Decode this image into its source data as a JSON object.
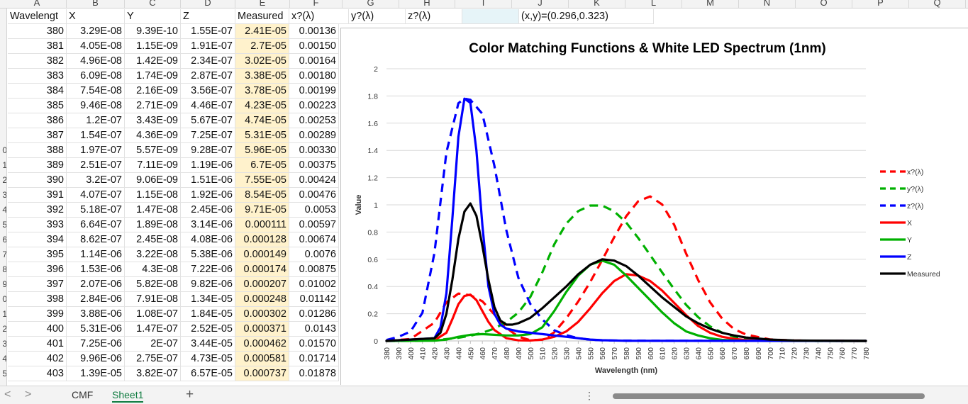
{
  "columns": [
    "A",
    "B",
    "C",
    "D",
    "E",
    "F",
    "G",
    "H",
    "I",
    "J",
    "K",
    "L",
    "M",
    "N",
    "O",
    "P",
    "Q"
  ],
  "row_numbers": [
    "",
    "",
    "",
    "",
    "",
    "",
    "",
    "",
    "",
    "0",
    "1",
    "2",
    "3",
    "4",
    "5",
    "6",
    "7",
    "8",
    "9",
    "0",
    "1",
    "2",
    "3",
    "4",
    "5"
  ],
  "header_row": [
    "Wavelengt",
    "X",
    "Y",
    "Z",
    "Measured",
    "x?(λ)",
    "y?(λ)",
    "z?(λ)",
    "",
    "(x,y)=(0.296,0.323)"
  ],
  "rows": [
    [
      "380",
      "3.29E-08",
      "9.39E-10",
      "1.55E-07",
      "2.41E-05",
      "0.00136"
    ],
    [
      "381",
      "4.05E-08",
      "1.15E-09",
      "1.91E-07",
      "2.7E-05",
      "0.00150"
    ],
    [
      "382",
      "4.96E-08",
      "1.42E-09",
      "2.34E-07",
      "3.02E-05",
      "0.00164"
    ],
    [
      "383",
      "6.09E-08",
      "1.74E-09",
      "2.87E-07",
      "3.38E-05",
      "0.00180"
    ],
    [
      "384",
      "7.54E-08",
      "2.16E-09",
      "3.56E-07",
      "3.78E-05",
      "0.00199"
    ],
    [
      "385",
      "9.46E-08",
      "2.71E-09",
      "4.46E-07",
      "4.23E-05",
      "0.00223"
    ],
    [
      "386",
      "1.2E-07",
      "3.43E-09",
      "5.67E-07",
      "4.74E-05",
      "0.00253"
    ],
    [
      "387",
      "1.54E-07",
      "4.36E-09",
      "7.25E-07",
      "5.31E-05",
      "0.00289"
    ],
    [
      "388",
      "1.97E-07",
      "5.57E-09",
      "9.28E-07",
      "5.96E-05",
      "0.00330"
    ],
    [
      "389",
      "2.51E-07",
      "7.11E-09",
      "1.19E-06",
      "6.7E-05",
      "0.00375"
    ],
    [
      "390",
      "3.2E-07",
      "9.06E-09",
      "1.51E-06",
      "7.55E-05",
      "0.00424"
    ],
    [
      "391",
      "4.07E-07",
      "1.15E-08",
      "1.92E-06",
      "8.54E-05",
      "0.00476"
    ],
    [
      "392",
      "5.18E-07",
      "1.47E-08",
      "2.45E-06",
      "9.71E-05",
      "0.0053"
    ],
    [
      "393",
      "6.64E-07",
      "1.89E-08",
      "3.14E-06",
      "0.000111",
      "0.00597"
    ],
    [
      "394",
      "8.62E-07",
      "2.45E-08",
      "4.08E-06",
      "0.000128",
      "0.00674"
    ],
    [
      "395",
      "1.14E-06",
      "3.22E-08",
      "5.38E-06",
      "0.000149",
      "0.0076"
    ],
    [
      "396",
      "1.53E-06",
      "4.3E-08",
      "7.22E-06",
      "0.000174",
      "0.00875"
    ],
    [
      "397",
      "2.07E-06",
      "5.82E-08",
      "9.82E-06",
      "0.000207",
      "0.01002"
    ],
    [
      "398",
      "2.84E-06",
      "7.91E-08",
      "1.34E-05",
      "0.000248",
      "0.01142"
    ],
    [
      "399",
      "3.88E-06",
      "1.08E-07",
      "1.84E-05",
      "0.000302",
      "0.01286"
    ],
    [
      "400",
      "5.31E-06",
      "1.47E-07",
      "2.52E-05",
      "0.000371",
      "0.0143"
    ],
    [
      "401",
      "7.25E-06",
      "2E-07",
      "3.44E-05",
      "0.000462",
      "0.01570"
    ],
    [
      "402",
      "9.96E-06",
      "2.75E-07",
      "4.73E-05",
      "0.000581",
      "0.01714"
    ],
    [
      "403",
      "1.39E-05",
      "3.82E-07",
      "6.57E-05",
      "0.000737",
      "0.01878"
    ]
  ],
  "tabs": [
    "CMF",
    "Sheet1"
  ],
  "add_tab": "+",
  "nav": {
    "prev": "<",
    "next": ">",
    "more": "⋮"
  },
  "colors": {
    "x": "#ff0000",
    "y": "#00b000",
    "z": "#0000ff",
    "measured": "#000000",
    "highlight": "#fff2cc",
    "tab_active": "#107c41"
  },
  "chart_data": {
    "type": "line",
    "title": "Color Matching Functions & White LED Spectrum (1nm)",
    "xlabel": "Wavelength (nm)",
    "ylabel": "Value",
    "xlim": [
      380,
      780
    ],
    "ylim": [
      0,
      2
    ],
    "yticks": [
      0,
      0.2,
      0.4,
      0.6,
      0.8,
      1,
      1.2,
      1.4,
      1.6,
      1.8,
      2
    ],
    "xtick_step": 10,
    "grid": true,
    "legend_placement": "right",
    "series": [
      {
        "name": "x?(λ)",
        "color": "#ff0000",
        "style": "dashed",
        "x": [
          380,
          400,
          420,
          430,
          440,
          450,
          460,
          470,
          480,
          490,
          500,
          510,
          520,
          530,
          540,
          550,
          560,
          570,
          580,
          590,
          600,
          610,
          620,
          630,
          640,
          650,
          660,
          670,
          680,
          700,
          720,
          740,
          780
        ],
        "y": [
          0.001,
          0.014,
          0.134,
          0.284,
          0.348,
          0.336,
          0.291,
          0.195,
          0.096,
          0.032,
          0.005,
          0.009,
          0.063,
          0.166,
          0.29,
          0.433,
          0.595,
          0.762,
          0.916,
          1.026,
          1.062,
          1.003,
          0.854,
          0.642,
          0.448,
          0.284,
          0.165,
          0.087,
          0.047,
          0.011,
          0.003,
          0.001,
          0
        ]
      },
      {
        "name": "y?(λ)",
        "color": "#00b000",
        "style": "dashed",
        "x": [
          380,
          400,
          420,
          440,
          450,
          460,
          470,
          480,
          490,
          500,
          510,
          520,
          530,
          540,
          550,
          560,
          570,
          580,
          590,
          600,
          610,
          620,
          630,
          640,
          650,
          660,
          670,
          680,
          700,
          720,
          740,
          780
        ],
        "y": [
          0,
          0,
          0.004,
          0.023,
          0.038,
          0.06,
          0.091,
          0.139,
          0.208,
          0.323,
          0.503,
          0.71,
          0.862,
          0.954,
          0.995,
          0.995,
          0.952,
          0.87,
          0.757,
          0.631,
          0.503,
          0.381,
          0.265,
          0.175,
          0.107,
          0.061,
          0.032,
          0.017,
          0.004,
          0.001,
          0,
          0
        ]
      },
      {
        "name": "z?(λ)",
        "color": "#0000ff",
        "style": "dashed",
        "x": [
          380,
          390,
          400,
          410,
          420,
          430,
          440,
          445,
          450,
          455,
          460,
          470,
          480,
          490,
          500,
          510,
          520,
          530,
          540,
          550,
          560,
          580,
          600,
          780
        ],
        "y": [
          0.007,
          0.03,
          0.068,
          0.207,
          0.646,
          1.386,
          1.747,
          1.78,
          1.772,
          1.72,
          1.669,
          1.288,
          0.813,
          0.465,
          0.272,
          0.158,
          0.078,
          0.042,
          0.02,
          0.009,
          0.004,
          0.002,
          0.001,
          0
        ]
      },
      {
        "name": "X",
        "color": "#ff0000",
        "style": "solid",
        "x": [
          380,
          420,
          430,
          435,
          440,
          445,
          450,
          455,
          460,
          465,
          470,
          480,
          490,
          500,
          510,
          520,
          530,
          540,
          550,
          560,
          570,
          580,
          590,
          600,
          610,
          620,
          630,
          640,
          650,
          660,
          670,
          680,
          700,
          780
        ],
        "y": [
          0,
          0.005,
          0.06,
          0.16,
          0.27,
          0.33,
          0.34,
          0.3,
          0.22,
          0.14,
          0.08,
          0.02,
          0.004,
          0.003,
          0.01,
          0.03,
          0.07,
          0.14,
          0.24,
          0.35,
          0.44,
          0.49,
          0.48,
          0.44,
          0.37,
          0.28,
          0.19,
          0.11,
          0.06,
          0.03,
          0.015,
          0.006,
          0.001,
          0
        ]
      },
      {
        "name": "Y",
        "color": "#00b000",
        "style": "solid",
        "x": [
          380,
          420,
          430,
          440,
          450,
          460,
          470,
          480,
          490,
          500,
          510,
          520,
          530,
          540,
          550,
          560,
          570,
          580,
          590,
          600,
          610,
          620,
          630,
          640,
          650,
          660,
          670,
          680,
          700,
          780
        ],
        "y": [
          0,
          0.002,
          0.01,
          0.03,
          0.045,
          0.05,
          0.045,
          0.04,
          0.04,
          0.05,
          0.1,
          0.22,
          0.36,
          0.48,
          0.56,
          0.59,
          0.56,
          0.48,
          0.39,
          0.3,
          0.21,
          0.13,
          0.07,
          0.04,
          0.02,
          0.008,
          0.003,
          0.001,
          0,
          0
        ]
      },
      {
        "name": "Z",
        "color": "#0000ff",
        "style": "solid",
        "x": [
          380,
          420,
          425,
          430,
          435,
          440,
          445,
          450,
          455,
          460,
          465,
          470,
          475,
          480,
          490,
          500,
          510,
          520,
          530,
          540,
          550,
          560,
          580,
          780
        ],
        "y": [
          0,
          0.02,
          0.1,
          0.35,
          0.9,
          1.5,
          1.78,
          1.75,
          1.4,
          0.85,
          0.4,
          0.2,
          0.12,
          0.09,
          0.07,
          0.06,
          0.05,
          0.04,
          0.03,
          0.02,
          0.01,
          0.005,
          0.001,
          0
        ]
      },
      {
        "name": "Measured",
        "color": "#000000",
        "style": "solid",
        "x": [
          380,
          420,
          425,
          430,
          435,
          440,
          445,
          450,
          455,
          460,
          465,
          470,
          475,
          480,
          485,
          490,
          500,
          510,
          520,
          530,
          540,
          550,
          560,
          570,
          580,
          590,
          600,
          610,
          620,
          630,
          640,
          650,
          660,
          670,
          680,
          700,
          720,
          780
        ],
        "y": [
          0,
          0.02,
          0.06,
          0.2,
          0.45,
          0.75,
          0.95,
          1.01,
          0.92,
          0.7,
          0.45,
          0.25,
          0.15,
          0.12,
          0.12,
          0.13,
          0.17,
          0.24,
          0.32,
          0.4,
          0.49,
          0.56,
          0.6,
          0.59,
          0.55,
          0.48,
          0.4,
          0.32,
          0.25,
          0.18,
          0.13,
          0.09,
          0.06,
          0.04,
          0.025,
          0.01,
          0.003,
          0
        ]
      }
    ]
  }
}
